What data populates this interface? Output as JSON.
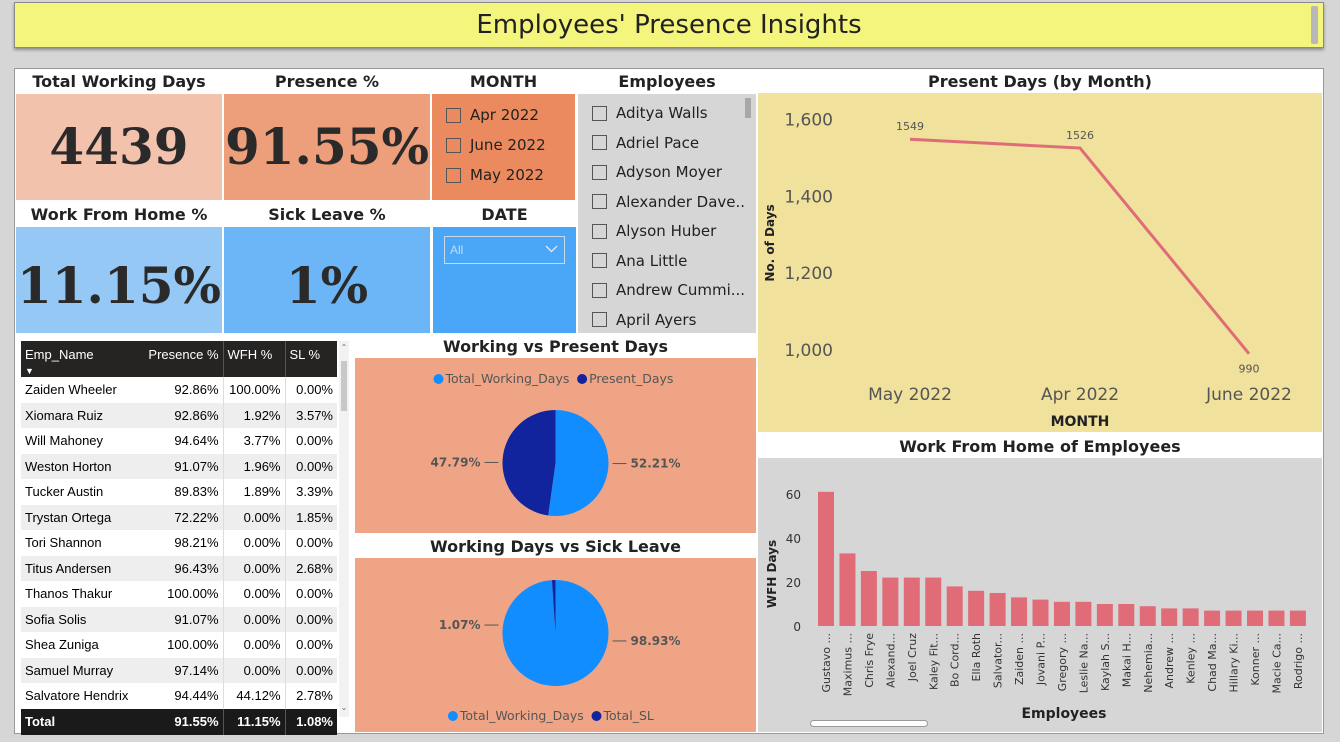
{
  "title": "Employees' Presence Insights",
  "cards": {
    "total_working_days": {
      "label": "Total Working Days",
      "value": "4439"
    },
    "presence": {
      "label": "Presence %",
      "value": "91.55%"
    },
    "wfh": {
      "label": "Work From Home %",
      "value": "11.15%"
    },
    "sick_leave": {
      "label": "Sick Leave %",
      "value": "1%"
    }
  },
  "month_slicer": {
    "label": "MONTH",
    "options": [
      "Apr 2022",
      "June 2022",
      "May 2022"
    ]
  },
  "date_slicer": {
    "label": "DATE",
    "selected": "All"
  },
  "employees_slicer": {
    "label": "Employees",
    "options": [
      "Aditya Walls",
      "Adriel Pace",
      "Adyson Moyer",
      "Alexander Dave...",
      "Alyson Huber",
      "Ana Little",
      "Andrew Cummi...",
      "April Ayers"
    ]
  },
  "table": {
    "columns": [
      "Emp_Name",
      "Presence %",
      "WFH %",
      "SL %"
    ],
    "rows": [
      [
        "Zaiden Wheeler",
        "92.86%",
        "100.00%",
        "0.00%"
      ],
      [
        "Xiomara Ruiz",
        "92.86%",
        "1.92%",
        "3.57%"
      ],
      [
        "Will Mahoney",
        "94.64%",
        "3.77%",
        "0.00%"
      ],
      [
        "Weston Horton",
        "91.07%",
        "1.96%",
        "0.00%"
      ],
      [
        "Tucker Austin",
        "89.83%",
        "1.89%",
        "3.39%"
      ],
      [
        "Trystan Ortega",
        "72.22%",
        "0.00%",
        "1.85%"
      ],
      [
        "Tori Shannon",
        "98.21%",
        "0.00%",
        "0.00%"
      ],
      [
        "Titus Andersen",
        "96.43%",
        "0.00%",
        "2.68%"
      ],
      [
        "Thanos Thakur",
        "100.00%",
        "0.00%",
        "0.00%"
      ],
      [
        "Sofia Solis",
        "91.07%",
        "0.00%",
        "0.00%"
      ],
      [
        "Shea Zuniga",
        "100.00%",
        "0.00%",
        "0.00%"
      ],
      [
        "Samuel Murray",
        "97.14%",
        "0.00%",
        "0.00%"
      ],
      [
        "Salvatore Hendrix",
        "94.44%",
        "44.12%",
        "2.78%"
      ]
    ],
    "total": [
      "Total",
      "91.55%",
      "11.15%",
      "1.08%"
    ]
  },
  "colors": {
    "salmon_light": "#f3c2ad",
    "salmon": "#ed9e7b",
    "orange": "#eb8a5e",
    "blue_light": "#96c8f5",
    "blue": "#6cb6f7",
    "blue_mid": "#4aa6f7",
    "yellow_panel": "#f0e19c",
    "pie_bg": "#efa585",
    "pie_light": "#118dff",
    "pie_dark": "#12239e",
    "line": "#e06c78",
    "bar": "#e06c78"
  },
  "chart_data": [
    {
      "type": "line",
      "title": "Present Days (by Month)",
      "xlabel": "MONTH",
      "ylabel": "No. of Days",
      "categories": [
        "May 2022",
        "Apr 2022",
        "June 2022"
      ],
      "values": [
        1549,
        1526,
        990
      ],
      "yticks": [
        1000,
        1200,
        1400,
        1600
      ],
      "ytick_labels": [
        "1,000",
        "1,200",
        "1,400",
        "1,600"
      ],
      "ylim": [
        950,
        1620
      ]
    },
    {
      "type": "pie",
      "title": "Working vs Present Days",
      "legend": [
        "Total_Working_Days",
        "Present_Days"
      ],
      "values": [
        52.21,
        47.79
      ],
      "labels": [
        "52.21%",
        "47.79%"
      ]
    },
    {
      "type": "pie",
      "title": "Working Days vs Sick Leave",
      "legend": [
        "Total_Working_Days",
        "Total_SL"
      ],
      "values": [
        98.93,
        1.07
      ],
      "labels": [
        "98.93%",
        "1.07%"
      ]
    },
    {
      "type": "bar",
      "title": "Work From Home of Employees",
      "xlabel": "Employees",
      "ylabel": "WFH Days",
      "categories": [
        "Gustavo ...",
        "Maximus ...",
        "Chris Frye",
        "Alexand...",
        "Joel Cruz",
        "Kaley Fit...",
        "Bo Cord...",
        "Ella Roth",
        "Salvator...",
        "Zaiden ...",
        "Jovani P...",
        "Gregory ...",
        "Leslie Na...",
        "Kaylah S...",
        "Makai H...",
        "Nehemia...",
        "Andrew ...",
        "Kenley ...",
        "Chad Ma...",
        "Hillary Ki...",
        "Konner ...",
        "Macie Ca...",
        "Rodrigo ..."
      ],
      "values": [
        61,
        33,
        25,
        22,
        22,
        22,
        18,
        16,
        15,
        13,
        12,
        11,
        11,
        10,
        10,
        9,
        8,
        8,
        7,
        7,
        7,
        7,
        7
      ],
      "yticks": [
        0,
        20,
        40,
        60
      ],
      "ylim": [
        0,
        66
      ]
    }
  ]
}
